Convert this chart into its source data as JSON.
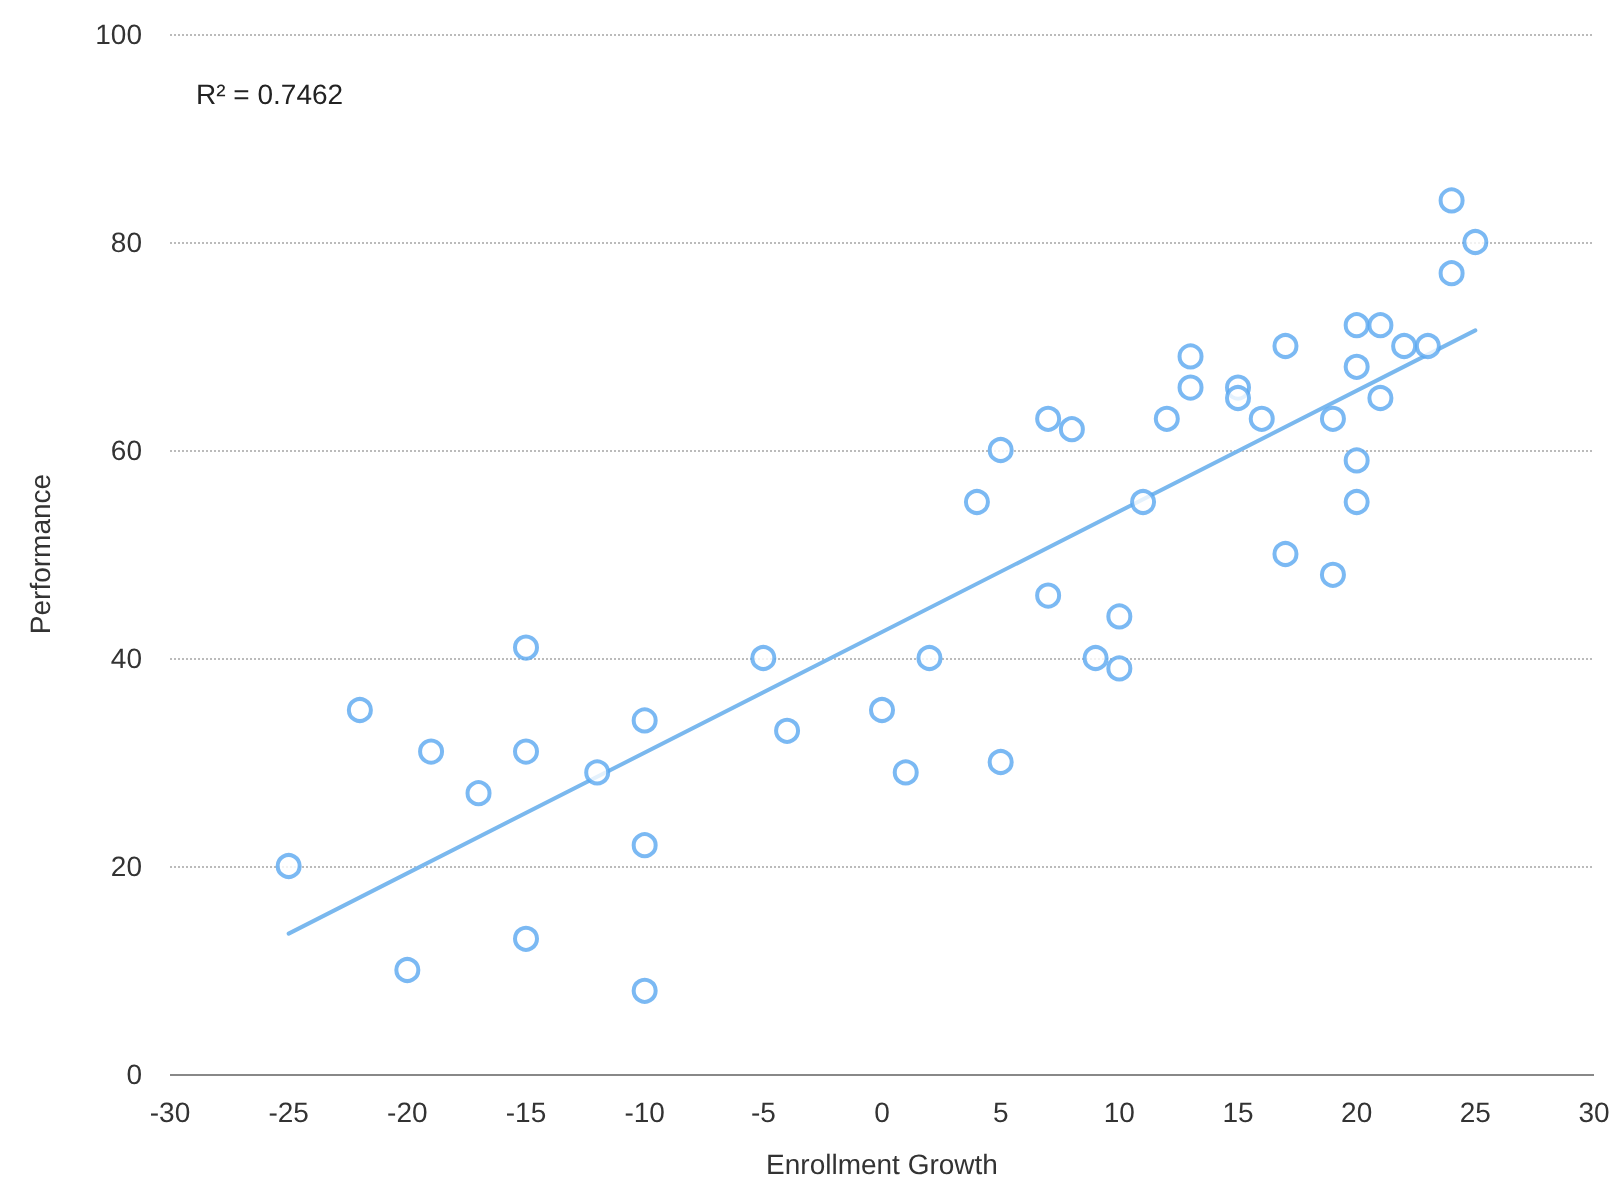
{
  "chart_data": {
    "type": "scatter",
    "xlabel": "Enrollment Growth",
    "ylabel": "Performance",
    "annotations": [
      "R² = 0.7462"
    ],
    "xlim": [
      -30,
      30
    ],
    "xticks": [
      -30,
      -25,
      -20,
      -15,
      -10,
      -5,
      0,
      5,
      10,
      15,
      20,
      25,
      30
    ],
    "ylim": [
      0,
      100
    ],
    "yticks": [
      0,
      20,
      40,
      60,
      80,
      100
    ],
    "grid": "y",
    "marker": "circle",
    "series": [
      {
        "color": "#5aa7f0",
        "x": [
          -25,
          -22,
          -20,
          -19,
          -17,
          -15,
          -15,
          -15,
          -12,
          -10,
          -10,
          -10,
          -5,
          -4,
          0,
          1,
          2,
          4,
          5,
          5,
          7,
          7,
          8,
          9,
          10,
          10,
          11,
          12,
          13,
          13,
          15,
          15,
          16,
          17,
          17,
          19,
          19,
          20,
          20,
          20,
          20,
          21,
          21,
          22,
          23,
          24,
          24,
          25
        ],
        "values": [
          20,
          35,
          10,
          31,
          27,
          41,
          31,
          13,
          29,
          34,
          22,
          8,
          40,
          33,
          35,
          29,
          40,
          55,
          60,
          30,
          63,
          46,
          62,
          40,
          44,
          39,
          55,
          63,
          69,
          66,
          66,
          65,
          63,
          70,
          50,
          63,
          48,
          72,
          68,
          59,
          55,
          72,
          65,
          70,
          70,
          84,
          77,
          80
        ]
      },
      {
        "type": "line",
        "color": "#7ab8ee",
        "marker": "none",
        "line_style": "solid",
        "x": [
          -25,
          25
        ],
        "values": [
          13.5,
          71.5
        ]
      }
    ]
  }
}
